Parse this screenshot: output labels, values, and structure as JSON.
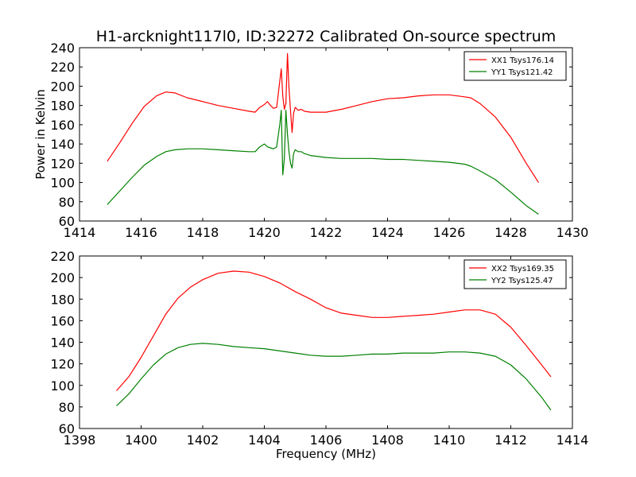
{
  "figure": {
    "title": "H1-arcknight117l0, ID:32272 Calibrated On-source spectrum",
    "ylabel": "Power in Kelvin",
    "xlabel": "Frequency (MHz)"
  },
  "colors": {
    "xx": "#ff0000",
    "yy": "#008000"
  },
  "chart_data": [
    {
      "type": "line",
      "xlim": [
        1414,
        1430
      ],
      "ylim": [
        60,
        240
      ],
      "xticks": [
        1414,
        1416,
        1418,
        1420,
        1422,
        1424,
        1426,
        1428,
        1430
      ],
      "yticks": [
        60,
        80,
        100,
        120,
        140,
        160,
        180,
        200,
        220,
        240
      ],
      "grid": false,
      "legend_position": "top-right",
      "series": [
        {
          "name": "XX1 Tsys176.14",
          "color": "#ff0000",
          "x": [
            1414.9,
            1415.3,
            1415.7,
            1416.1,
            1416.5,
            1416.8,
            1417.1,
            1417.5,
            1418.0,
            1418.5,
            1419.0,
            1419.5,
            1419.7,
            1419.85,
            1420.0,
            1420.1,
            1420.2,
            1420.3,
            1420.4,
            1420.5,
            1420.55,
            1420.6,
            1420.65,
            1420.7,
            1420.75,
            1420.8,
            1420.85,
            1420.9,
            1420.95,
            1421.0,
            1421.1,
            1421.2,
            1421.3,
            1421.5,
            1422.0,
            1422.5,
            1423.0,
            1423.5,
            1424.0,
            1424.5,
            1425.0,
            1425.5,
            1426.0,
            1426.5,
            1426.7,
            1427.0,
            1427.5,
            1428.0,
            1428.5,
            1428.9
          ],
          "y": [
            122,
            141,
            161,
            179,
            190,
            194,
            193,
            188,
            184,
            180,
            177,
            174,
            173,
            178,
            181,
            184,
            180,
            177,
            178,
            205,
            218,
            190,
            176,
            182,
            234,
            198,
            175,
            152,
            172,
            178,
            175,
            176,
            174,
            173,
            173,
            176,
            180,
            184,
            187,
            188,
            190,
            191,
            191,
            189,
            188,
            182,
            168,
            147,
            120,
            100
          ]
        },
        {
          "name": "YY1 Tsys121.42",
          "color": "#008000",
          "x": [
            1414.9,
            1415.3,
            1415.7,
            1416.1,
            1416.5,
            1416.8,
            1417.1,
            1417.5,
            1418.0,
            1418.5,
            1419.0,
            1419.5,
            1419.7,
            1419.85,
            1420.0,
            1420.1,
            1420.2,
            1420.3,
            1420.4,
            1420.5,
            1420.55,
            1420.6,
            1420.65,
            1420.7,
            1420.75,
            1420.8,
            1420.85,
            1420.9,
            1420.95,
            1421.0,
            1421.1,
            1421.2,
            1421.3,
            1421.5,
            1422.0,
            1422.5,
            1423.0,
            1423.5,
            1424.0,
            1424.5,
            1425.0,
            1425.5,
            1426.0,
            1426.5,
            1426.7,
            1427.0,
            1427.5,
            1428.0,
            1428.5,
            1428.9
          ],
          "y": [
            77,
            91,
            105,
            118,
            127,
            132,
            134,
            135,
            135,
            134,
            133,
            132,
            132,
            137,
            140,
            137,
            136,
            135,
            137,
            160,
            175,
            108,
            125,
            175,
            150,
            132,
            120,
            115,
            130,
            134,
            132,
            132,
            130,
            128,
            126,
            125,
            125,
            125,
            124,
            124,
            123,
            122,
            121,
            119,
            117,
            112,
            103,
            90,
            76,
            67
          ]
        }
      ]
    },
    {
      "type": "line",
      "xlim": [
        1398,
        1414
      ],
      "ylim": [
        60,
        220
      ],
      "xticks": [
        1398,
        1400,
        1402,
        1404,
        1406,
        1408,
        1410,
        1412,
        1414
      ],
      "yticks": [
        60,
        80,
        100,
        120,
        140,
        160,
        180,
        200,
        220
      ],
      "grid": false,
      "legend_position": "top-right",
      "series": [
        {
          "name": "XX2 Tsys169.35",
          "color": "#ff0000",
          "x": [
            1399.2,
            1399.6,
            1400.0,
            1400.4,
            1400.8,
            1401.2,
            1401.6,
            1402.0,
            1402.5,
            1403.0,
            1403.5,
            1404.0,
            1404.5,
            1405.0,
            1405.5,
            1406.0,
            1406.5,
            1407.0,
            1407.5,
            1408.0,
            1408.5,
            1409.0,
            1409.5,
            1410.0,
            1410.5,
            1411.0,
            1411.5,
            1412.0,
            1412.5,
            1413.0,
            1413.3
          ],
          "y": [
            95,
            108,
            126,
            146,
            166,
            181,
            191,
            198,
            204,
            206,
            205,
            201,
            195,
            187,
            180,
            172,
            167,
            165,
            163,
            163,
            164,
            165,
            166,
            168,
            170,
            170,
            166,
            154,
            137,
            119,
            108
          ]
        },
        {
          "name": "YY2 Tsys125.47",
          "color": "#008000",
          "x": [
            1399.2,
            1399.6,
            1400.0,
            1400.4,
            1400.8,
            1401.2,
            1401.6,
            1402.0,
            1402.5,
            1403.0,
            1403.5,
            1404.0,
            1404.5,
            1405.0,
            1405.5,
            1406.0,
            1406.5,
            1407.0,
            1407.5,
            1408.0,
            1408.5,
            1409.0,
            1409.5,
            1410.0,
            1410.5,
            1411.0,
            1411.5,
            1412.0,
            1412.5,
            1413.0,
            1413.3
          ],
          "y": [
            81,
            92,
            106,
            119,
            129,
            135,
            138,
            139,
            138,
            136,
            135,
            134,
            132,
            130,
            128,
            127,
            127,
            128,
            129,
            129,
            130,
            130,
            130,
            131,
            131,
            130,
            127,
            119,
            106,
            89,
            77
          ]
        }
      ]
    }
  ]
}
